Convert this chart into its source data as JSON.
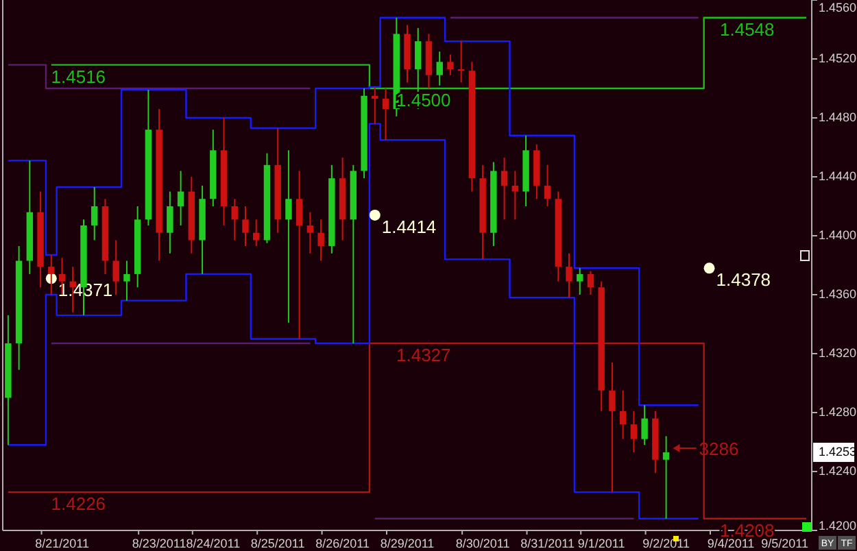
{
  "chart_data": {
    "type": "candlestick",
    "categories": [
      null,
      null,
      null,
      null,
      null,
      "8/21/2011",
      null,
      null,
      null,
      null,
      null,
      null,
      null,
      null,
      "8/23/2011",
      null,
      null,
      null,
      null,
      "8/24/2011",
      null,
      null,
      null,
      null,
      null,
      "8/25/2011",
      null,
      null,
      null,
      null,
      null,
      "8/26/2011",
      null,
      null,
      null,
      null,
      null,
      "8/29/2011",
      null,
      null,
      null,
      null,
      null,
      null,
      "8/30/2011",
      null,
      null,
      null,
      null,
      null,
      "8/31/2011",
      null,
      null,
      null,
      null,
      "9/1/2011",
      null,
      null,
      null,
      null,
      null,
      "9/2/2011",
      null,
      null,
      null,
      null,
      null,
      "9/4/2011",
      null,
      null,
      null,
      null,
      "9/5/2011",
      null,
      null
    ],
    "ohlc": [
      [
        1.429,
        1.4346,
        1.4258,
        1.4327
      ],
      [
        1.4327,
        1.4393,
        1.4309,
        1.4383
      ],
      [
        1.4383,
        1.4451,
        1.4374,
        1.4416
      ],
      [
        1.4416,
        1.443,
        1.4365,
        1.4379
      ],
      [
        1.4379,
        1.4387,
        1.436,
        1.4374
      ],
      [
        1.4374,
        1.4385,
        1.436,
        1.4369
      ],
      [
        1.4369,
        1.4379,
        1.4348,
        1.4365
      ],
      [
        1.4365,
        1.4411,
        1.4346,
        1.4407
      ],
      [
        1.4407,
        1.4433,
        1.4397,
        1.442
      ],
      [
        1.442,
        1.4425,
        1.4374,
        1.4383
      ],
      [
        1.4383,
        1.4397,
        1.436,
        1.4369
      ],
      [
        1.4369,
        1.4383,
        1.4356,
        1.4374
      ],
      [
        1.4374,
        1.442,
        1.4365,
        1.4411
      ],
      [
        1.4411,
        1.4499,
        1.4407,
        1.4472
      ],
      [
        1.4472,
        1.4486,
        1.4383,
        1.4402
      ],
      [
        1.4402,
        1.443,
        1.4388,
        1.442
      ],
      [
        1.442,
        1.4444,
        1.4407,
        1.443
      ],
      [
        1.443,
        1.444,
        1.4388,
        1.4397
      ],
      [
        1.4397,
        1.4434,
        1.4374,
        1.4425
      ],
      [
        1.4425,
        1.4472,
        1.442,
        1.4458
      ],
      [
        1.4458,
        1.448,
        1.4407,
        1.442
      ],
      [
        1.442,
        1.4425,
        1.4397,
        1.4411
      ],
      [
        1.4411,
        1.442,
        1.4393,
        1.4402
      ],
      [
        1.4402,
        1.4411,
        1.4393,
        1.4397
      ],
      [
        1.4397,
        1.4456,
        1.4395,
        1.4448
      ],
      [
        1.4448,
        1.4473,
        1.4402,
        1.4411
      ],
      [
        1.4411,
        1.4458,
        1.4341,
        1.4425
      ],
      [
        1.4425,
        1.4444,
        1.433,
        1.4407
      ],
      [
        1.4407,
        1.4416,
        1.4388,
        1.4402
      ],
      [
        1.4402,
        1.4411,
        1.4383,
        1.4393
      ],
      [
        1.4393,
        1.4448,
        1.4388,
        1.4439
      ],
      [
        1.4439,
        1.4453,
        1.4397,
        1.4411
      ],
      [
        1.4411,
        1.4448,
        1.4327,
        1.4444
      ],
      [
        1.4444,
        1.45,
        1.4439,
        1.4495
      ],
      [
        1.4495,
        1.4501,
        1.4476,
        1.4493
      ],
      [
        1.4493,
        1.45,
        1.4465,
        1.4486
      ],
      [
        1.4486,
        1.4548,
        1.4481,
        1.4537
      ],
      [
        1.4537,
        1.4543,
        1.4504,
        1.4513
      ],
      [
        1.4513,
        1.4541,
        1.4486,
        1.4532
      ],
      [
        1.4532,
        1.4537,
        1.45,
        1.4509
      ],
      [
        1.4509,
        1.4525,
        1.4502,
        1.4518
      ],
      [
        1.4518,
        1.4523,
        1.4509,
        1.4513
      ],
      [
        1.4513,
        1.4532,
        1.4504,
        1.4512
      ],
      [
        1.4512,
        1.4518,
        1.443,
        1.4439
      ],
      [
        1.4439,
        1.4448,
        1.4384,
        1.4402
      ],
      [
        1.4402,
        1.445,
        1.4393,
        1.4444
      ],
      [
        1.4444,
        1.4453,
        1.4411,
        1.4434
      ],
      [
        1.4434,
        1.4444,
        1.4411,
        1.443
      ],
      [
        1.443,
        1.4468,
        1.442,
        1.4458
      ],
      [
        1.4458,
        1.4462,
        1.4425,
        1.4434
      ],
      [
        1.4434,
        1.4448,
        1.442,
        1.4425
      ],
      [
        1.4425,
        1.443,
        1.4369,
        1.4379
      ],
      [
        1.4379,
        1.4388,
        1.4358,
        1.4369
      ],
      [
        1.4369,
        1.4378,
        1.436,
        1.4374
      ],
      [
        1.4374,
        1.4376,
        1.436,
        1.4365
      ],
      [
        1.4365,
        1.4369,
        1.4281,
        1.4295
      ],
      [
        1.4295,
        1.4314,
        1.4226,
        1.4281
      ],
      [
        1.4281,
        1.4295,
        1.4262,
        1.4272
      ],
      [
        1.4272,
        1.4281,
        1.4253,
        1.4262
      ],
      [
        1.4262,
        1.4285,
        1.4258,
        1.4276
      ],
      [
        1.4276,
        1.4281,
        1.4239,
        1.4248
      ],
      [
        1.4248,
        1.4264,
        1.4208,
        1.4253
      ],
      null,
      null,
      null,
      null,
      null,
      null,
      null,
      null,
      null,
      null,
      null,
      null,
      null
    ],
    "colors": [
      "#22cc22",
      "#22cc22",
      "#22cc22",
      "#cc1111",
      "#cc1111",
      "#cc1111",
      "#cc1111",
      "#22cc22",
      "#22cc22",
      "#cc1111",
      "#cc1111",
      "#22cc22",
      "#22cc22",
      "#22cc22",
      "#cc1111",
      "#22cc22",
      "#22cc22",
      "#cc1111",
      "#22cc22",
      "#22cc22",
      "#cc1111",
      "#cc1111",
      "#cc1111",
      "#cc1111",
      "#22cc22",
      "#cc1111",
      "#22cc22",
      "#cc1111",
      "#cc1111",
      "#cc1111",
      "#22cc22",
      "#cc1111",
      "#22cc22",
      "#22cc22",
      "#cc1111",
      "#cc1111",
      "#22cc22",
      "#cc1111",
      "#22cc22",
      "#cc1111",
      "#22cc22",
      "#cc1111",
      "#cc1111",
      "#cc1111",
      "#cc1111",
      "#22cc22",
      "#cc1111",
      "#cc1111",
      "#22cc22",
      "#cc1111",
      "#cc1111",
      "#cc1111",
      "#cc1111",
      "#22cc22",
      "#cc1111",
      "#cc1111",
      "#cc1111",
      "#cc1111",
      "#cc1111",
      "#22cc22",
      "#cc1111",
      "#22cc22",
      null,
      null,
      null,
      null,
      null,
      null,
      null,
      null,
      null,
      null,
      null,
      null,
      null
    ],
    "series": [
      {
        "type": "step",
        "color": "#5a1e6e",
        "values": [
          1.4516,
          1.4516,
          1.4516,
          1.4516,
          1.45,
          1.45,
          1.45,
          1.45,
          1.45,
          1.45,
          1.45,
          1.45,
          1.45,
          1.45,
          1.45,
          1.45,
          1.45,
          1.45,
          1.45,
          1.45,
          1.45,
          1.45,
          1.45,
          1.45,
          1.45,
          1.45,
          1.45,
          1.45,
          1.45,
          null,
          null,
          null,
          null,
          null,
          null,
          null,
          null,
          null,
          null,
          null,
          null,
          1.4548,
          1.4548,
          1.4548,
          1.4548,
          1.4548,
          1.4548,
          1.4548,
          1.4548,
          1.4548,
          1.4548,
          1.4548,
          1.4548,
          1.4548,
          1.4548,
          1.4548,
          1.4548,
          1.4548,
          1.4548,
          1.4548,
          1.4548,
          1.4548,
          1.4548,
          1.4548,
          1.4548,
          null,
          null,
          null,
          null,
          null,
          null,
          null,
          null,
          null,
          null
        ]
      },
      {
        "type": "step",
        "color": "#5a1e6e",
        "values": [
          null,
          null,
          null,
          null,
          1.4327,
          1.4327,
          1.4327,
          1.4327,
          1.4327,
          1.4327,
          1.4327,
          1.4327,
          1.4327,
          1.4327,
          1.4327,
          1.4327,
          1.4327,
          1.4327,
          1.4327,
          1.4327,
          1.4327,
          1.4327,
          1.4327,
          1.4327,
          1.4327,
          1.4327,
          1.4327,
          1.4327,
          1.4327,
          null,
          null,
          null,
          null,
          null,
          1.4208,
          1.4208,
          1.4208,
          1.4208,
          1.4208,
          1.4208,
          1.4208,
          1.4208,
          1.4208,
          1.4208,
          1.4208,
          1.4208,
          1.4208,
          1.4208,
          1.4208,
          1.4208,
          1.4208,
          1.4208,
          1.4208,
          1.4208,
          1.4208,
          1.4208,
          1.4208,
          1.4208,
          1.4208,
          null,
          null,
          null,
          null,
          null,
          null,
          null,
          null,
          null,
          null,
          null,
          null,
          null,
          null,
          null,
          null
        ]
      },
      {
        "type": "step",
        "color": "#b01414",
        "values": [
          1.4226,
          1.4226,
          1.4226,
          1.4226,
          1.4226,
          1.4226,
          1.4226,
          1.4226,
          1.4226,
          1.4226,
          1.4226,
          1.4226,
          1.4226,
          1.4226,
          1.4226,
          1.4226,
          1.4226,
          1.4226,
          1.4226,
          1.4226,
          1.4226,
          1.4226,
          1.4226,
          1.4226,
          1.4226,
          1.4226,
          1.4226,
          1.4226,
          1.4226,
          1.4226,
          1.4226,
          1.4226,
          1.4226,
          1.4226,
          1.4327,
          1.4327,
          1.4327,
          1.4327,
          1.4327,
          1.4327,
          1.4327,
          1.4327,
          1.4327,
          1.4327,
          1.4327,
          1.4327,
          1.4327,
          1.4327,
          1.4327,
          1.4327,
          1.4327,
          1.4327,
          1.4327,
          1.4327,
          1.4327,
          1.4327,
          1.4327,
          1.4327,
          1.4327,
          1.4327,
          1.4327,
          1.4327,
          1.4327,
          1.4327,
          1.4327,
          1.4208,
          1.4208,
          1.4208,
          1.4208,
          1.4208,
          1.4208,
          1.4208,
          1.4208,
          1.4208,
          1.4208
        ]
      },
      {
        "type": "step",
        "color": "#18c018",
        "values": [
          null,
          null,
          null,
          null,
          1.4516,
          1.4516,
          1.4516,
          1.4516,
          1.4516,
          1.4516,
          1.4516,
          1.4516,
          1.4516,
          1.4516,
          1.4516,
          1.4516,
          1.4516,
          1.4516,
          1.4516,
          1.4516,
          1.4516,
          1.4516,
          1.4516,
          1.4516,
          1.4516,
          1.4516,
          1.4516,
          1.4516,
          1.4516,
          1.4516,
          1.4516,
          1.4516,
          1.4516,
          1.4516,
          1.45,
          1.45,
          1.45,
          1.45,
          1.45,
          1.45,
          1.45,
          1.45,
          1.45,
          1.45,
          1.45,
          1.45,
          1.45,
          1.45,
          1.45,
          1.45,
          1.45,
          1.45,
          1.45,
          1.45,
          1.45,
          1.45,
          1.45,
          1.45,
          1.45,
          1.45,
          1.45,
          1.45,
          1.45,
          1.45,
          1.45,
          1.4548,
          1.4548,
          1.4548,
          1.4548,
          1.4548,
          1.4548,
          1.4548,
          1.4548,
          1.4548,
          1.4548
        ]
      },
      {
        "type": "step",
        "color": "#1a1aff",
        "values": [
          1.4451,
          1.4451,
          1.4451,
          1.4451,
          1.4387,
          1.4433,
          1.4433,
          1.4433,
          1.4433,
          1.4433,
          1.4433,
          1.4499,
          1.4499,
          1.4499,
          1.4499,
          1.4499,
          1.4499,
          1.448,
          1.448,
          1.448,
          1.448,
          1.448,
          1.448,
          1.4473,
          1.4473,
          1.4473,
          1.4473,
          1.4473,
          1.4473,
          1.45,
          1.45,
          1.45,
          1.45,
          1.45,
          1.4501,
          1.4548,
          1.4548,
          1.4548,
          1.4548,
          1.4548,
          1.4548,
          1.4532,
          1.4532,
          1.4532,
          1.4532,
          1.4532,
          1.4532,
          1.4468,
          1.4468,
          1.4468,
          1.4468,
          1.4468,
          1.4468,
          1.4378,
          1.4378,
          1.4378,
          1.4378,
          1.4378,
          1.4378,
          1.4285,
          1.4285,
          1.4285,
          1.4285,
          1.4285,
          1.4285,
          null,
          null,
          null,
          null,
          null,
          null,
          null,
          null,
          null,
          null
        ]
      },
      {
        "type": "step",
        "color": "#1a1aff",
        "values": [
          1.4258,
          1.4258,
          1.4258,
          1.4258,
          1.436,
          1.4346,
          1.4346,
          1.4346,
          1.4346,
          1.4346,
          1.4346,
          1.4356,
          1.4356,
          1.4356,
          1.4356,
          1.4356,
          1.4356,
          1.4374,
          1.4374,
          1.4374,
          1.4374,
          1.4374,
          1.4374,
          1.433,
          1.433,
          1.433,
          1.433,
          1.433,
          1.433,
          1.4327,
          1.4327,
          1.4327,
          1.4327,
          1.4327,
          1.4476,
          1.4465,
          1.4465,
          1.4465,
          1.4465,
          1.4465,
          1.4465,
          1.4384,
          1.4384,
          1.4384,
          1.4384,
          1.4384,
          1.4384,
          1.4358,
          1.4358,
          1.4358,
          1.4358,
          1.4358,
          1.4358,
          1.4226,
          1.4226,
          1.4226,
          1.4226,
          1.4226,
          1.4226,
          1.4208,
          1.4208,
          1.4208,
          1.4208,
          1.4208,
          1.4208,
          null,
          null,
          null,
          null,
          null,
          null,
          null,
          null,
          null,
          null
        ]
      },
      {
        "type": "scatter",
        "color": "#ffffd8",
        "value_labels": [
          null,
          null,
          null,
          null,
          "1.4371",
          null,
          null,
          null,
          null,
          null,
          null,
          null,
          null,
          null,
          null,
          null,
          null,
          null,
          null,
          null,
          null,
          null,
          null,
          null,
          null,
          null,
          null,
          null,
          null,
          null,
          null,
          null,
          null,
          null,
          "1.4414",
          null,
          null,
          null,
          null,
          null,
          null,
          null,
          null,
          null,
          null,
          null,
          null,
          null,
          null,
          null,
          null,
          null,
          null,
          null,
          null,
          null,
          null,
          null,
          null,
          null,
          null,
          null,
          null,
          null,
          null,
          "1.4378",
          null,
          null,
          null,
          null,
          null,
          null,
          null,
          null,
          null
        ],
        "values": [
          null,
          null,
          null,
          null,
          1.4371,
          null,
          null,
          null,
          null,
          null,
          null,
          null,
          null,
          null,
          null,
          null,
          null,
          null,
          null,
          null,
          null,
          null,
          null,
          null,
          null,
          null,
          null,
          null,
          null,
          null,
          null,
          null,
          null,
          null,
          1.4414,
          null,
          null,
          null,
          null,
          null,
          null,
          null,
          null,
          null,
          null,
          null,
          null,
          null,
          null,
          null,
          null,
          null,
          null,
          null,
          null,
          null,
          null,
          null,
          null,
          null,
          null,
          null,
          null,
          null,
          null,
          1.4378,
          null,
          null,
          null,
          null,
          null,
          null,
          null,
          null,
          null
        ]
      }
    ],
    "ylim": [
      1.42,
      1.456
    ],
    "yticks": [
      {
        "value": 1.42,
        "label": "1.4200"
      },
      {
        "value": 1.424,
        "label": "1.4240"
      },
      {
        "value": 1.428,
        "label": "1.4280"
      },
      {
        "value": 1.432,
        "label": "1.4320"
      },
      {
        "value": 1.436,
        "label": "1.4360"
      },
      {
        "value": 1.44,
        "label": "1.4400"
      },
      {
        "value": 1.444,
        "label": "1.4440"
      },
      {
        "value": 1.448,
        "label": "1.4480"
      },
      {
        "value": 1.452,
        "label": "1.4520"
      },
      {
        "value": 1.456,
        "label": "1.4560"
      }
    ],
    "annotations": [
      {
        "text": "1.4516",
        "x": "8/21/2011",
        "y": 1.4516
      },
      {
        "text": "1.4226",
        "x": "8/21/2011",
        "y": 1.4226
      },
      {
        "text": "1.4500",
        "x": "8/29/2011",
        "y": 1.45
      },
      {
        "text": "1.4327",
        "x": "8/29/2011",
        "y": 1.4327
      },
      {
        "text": "1.4548",
        "x": "9/4/2011",
        "y": 1.4548
      },
      {
        "text": "1.4208",
        "x": "9/4/2011",
        "y": 1.4208
      },
      "3286",
      "1.4253",
      "BY",
      "TF"
    ]
  }
}
